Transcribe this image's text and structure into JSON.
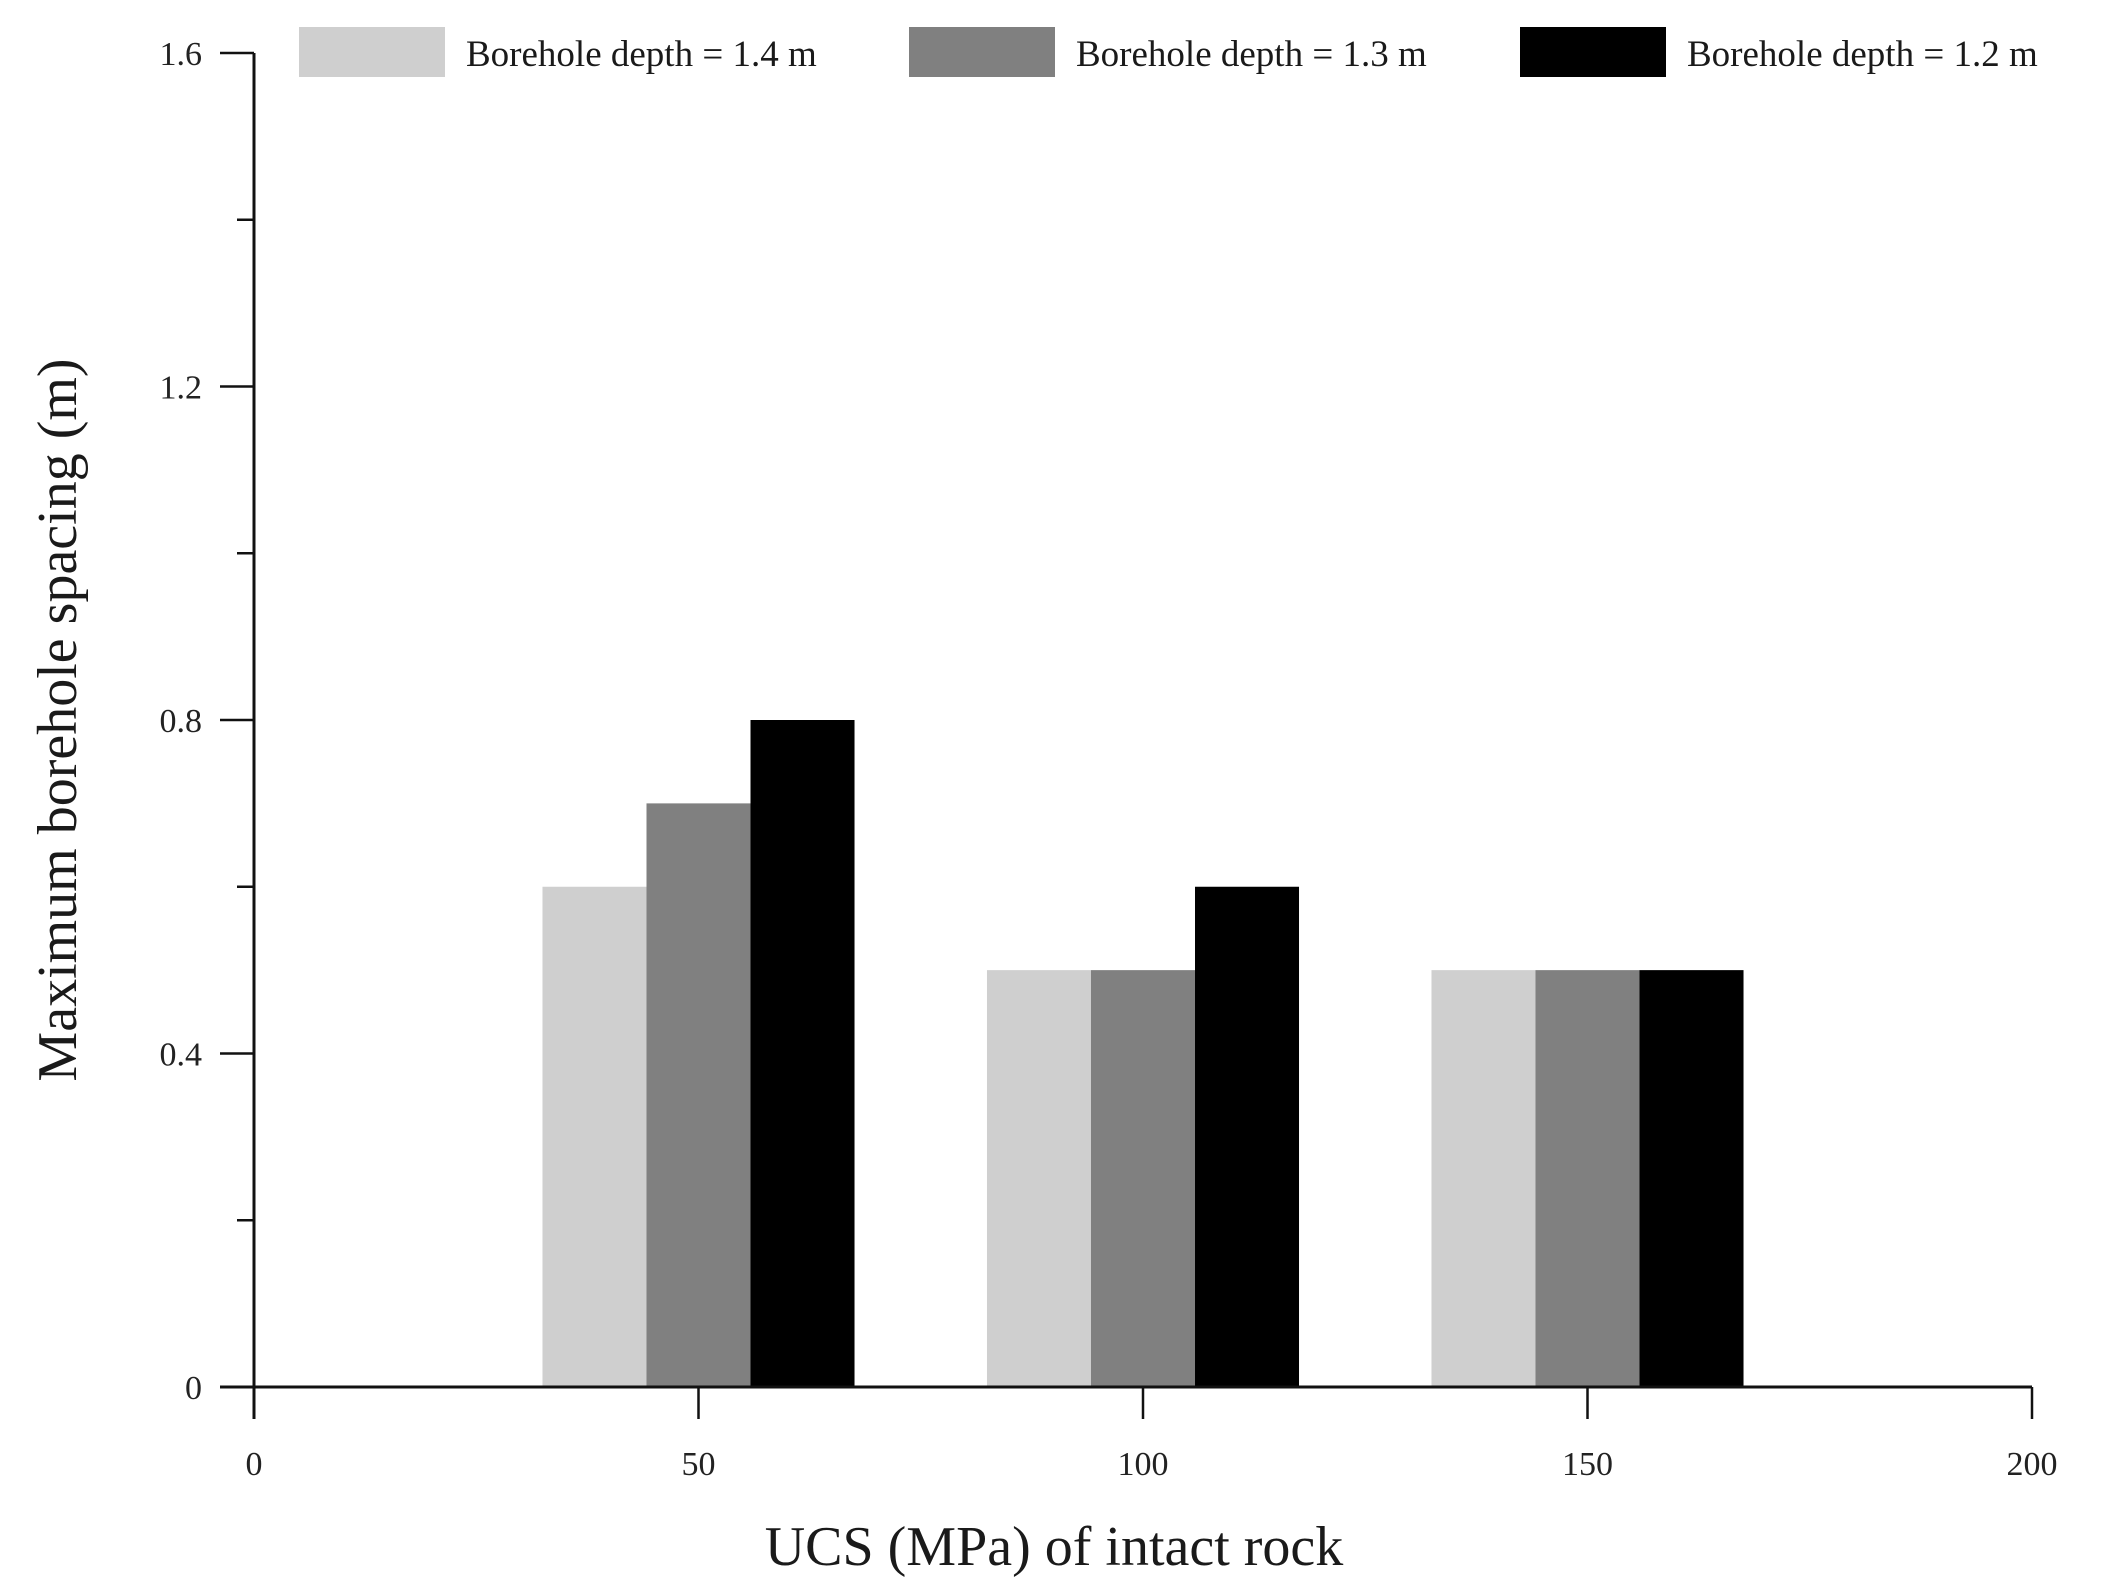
{
  "chart_data": {
    "type": "bar",
    "xlabel": "UCS (MPa) of intact rock",
    "ylabel": "Maximum borehole spacing (m)",
    "xlim": [
      0,
      200
    ],
    "ylim": [
      0,
      1.6
    ],
    "x_ticks": [
      0,
      50,
      100,
      150,
      200
    ],
    "x_tick_labels": [
      "0",
      "50",
      "100",
      "150",
      "200"
    ],
    "y_ticks": [
      0,
      0.4,
      0.8,
      1.2,
      1.6
    ],
    "y_tick_labels": [
      "0",
      "0.4",
      "0.8",
      "1.2",
      "1.6"
    ],
    "categories": [
      50,
      100,
      150
    ],
    "series": [
      {
        "name": "Borehole depth = 1.4 m",
        "color": "#cfcfcf",
        "values": [
          0.6,
          0.5,
          0.5
        ]
      },
      {
        "name": "Borehole depth = 1.3 m",
        "color": "#808080",
        "values": [
          0.7,
          0.5,
          0.5
        ]
      },
      {
        "name": "Borehole depth = 1.2 m",
        "color": "#000000",
        "values": [
          0.8,
          0.6,
          0.5
        ]
      }
    ],
    "bar_width_units": 11.7,
    "legend_position": "top",
    "grid": false
  }
}
